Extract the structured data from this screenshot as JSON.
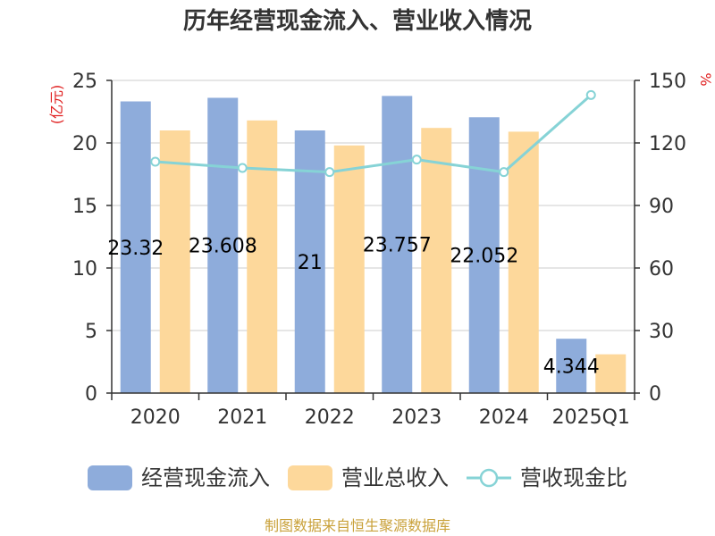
{
  "chart_data": {
    "type": "bar",
    "title": "历年经营现金流入、营业收入情况",
    "categories": [
      "2020",
      "2021",
      "2022",
      "2023",
      "2024",
      "2025Q1"
    ],
    "series": [
      {
        "name": "经营现金流入",
        "type": "bar",
        "axis": "left",
        "color": "#8eacdb",
        "values": [
          23.32,
          23.608,
          21,
          23.757,
          22.052,
          4.344
        ],
        "labels": [
          "23.32",
          "23.608",
          "21",
          "23.757",
          "22.052",
          "4.344"
        ]
      },
      {
        "name": "营业总收入",
        "type": "bar",
        "axis": "left",
        "color": "#fdd89b",
        "values": [
          21.0,
          21.8,
          19.8,
          21.2,
          20.9,
          3.1
        ]
      },
      {
        "name": "营收现金比",
        "type": "line",
        "axis": "right",
        "color": "#86d3d6",
        "values": [
          111,
          108,
          106,
          112,
          106,
          143
        ]
      }
    ],
    "y_left": {
      "unit": "(亿元)",
      "min": 0,
      "max": 25,
      "ticks": [
        0,
        5,
        10,
        15,
        20,
        25
      ]
    },
    "y_right": {
      "unit": "%",
      "min": 0,
      "max": 150,
      "ticks": [
        0,
        30,
        60,
        90,
        120,
        150
      ]
    },
    "grid": true,
    "legend_position": "bottom"
  },
  "source": "制图数据来自恒生聚源数据库"
}
